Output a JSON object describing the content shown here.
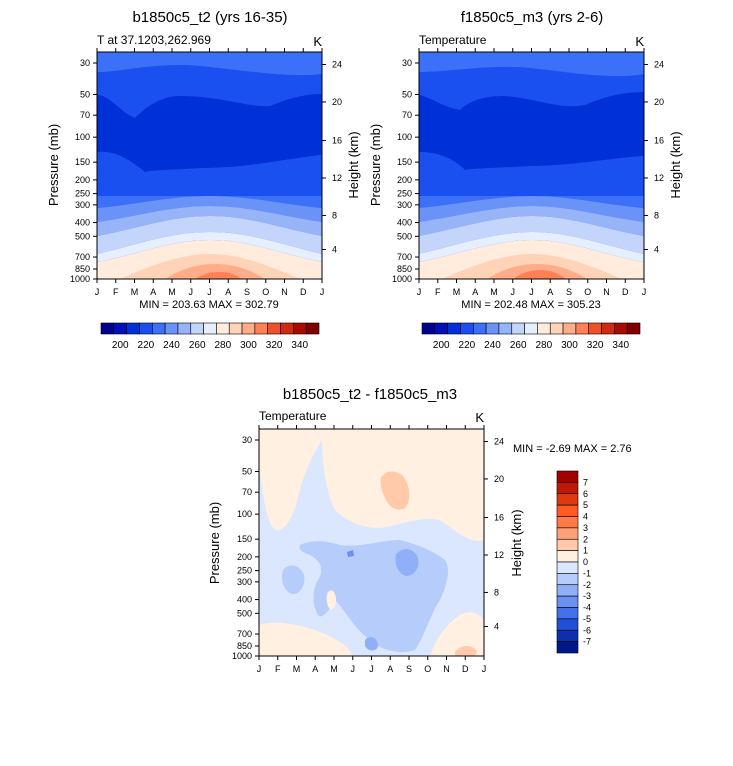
{
  "chart_data": [
    {
      "type": "heatmap",
      "id": "p1",
      "title": "b1850c5_t2 (yrs 16-35)",
      "subtitle_left": "T at 37.1203,262.969",
      "subtitle_right": "K",
      "ylabel": "Pressure (mb)",
      "ylabel_right": "Height (km)",
      "x_ticks": [
        "J",
        "F",
        "M",
        "A",
        "M",
        "J",
        "J",
        "A",
        "S",
        "O",
        "N",
        "D",
        "J"
      ],
      "y_ticks": [
        "30",
        "50",
        "70",
        "100",
        "150",
        "200",
        "250",
        "300",
        "400",
        "500",
        "700",
        "850",
        "1000"
      ],
      "y_ticks_right": [
        "24",
        "20",
        "16",
        "12",
        "8",
        "4"
      ],
      "minmax": "MIN = 203.63   MAX = 302.79",
      "colorbar_labels": [
        "200",
        "220",
        "240",
        "260",
        "280",
        "300",
        "320",
        "340"
      ],
      "bands": [
        {
          "p_top": 30,
          "p_bot": 55,
          "value": 215
        },
        {
          "p_top": 55,
          "p_bot": 155,
          "value": 205
        },
        {
          "p_top": 155,
          "p_bot": 235,
          "value": 215
        },
        {
          "p_top": 235,
          "p_bot": 300,
          "value": 225
        },
        {
          "p_top": 300,
          "p_bot": 370,
          "value": 235
        },
        {
          "p_top": 370,
          "p_bot": 460,
          "value": 245
        },
        {
          "p_top": 460,
          "p_bot": 560,
          "value": 255
        },
        {
          "p_top": 560,
          "p_bot": 700,
          "value": 265
        },
        {
          "p_top": 700,
          "p_bot": 830,
          "value": 275
        },
        {
          "p_top": 830,
          "p_bot": 930,
          "value": 285
        },
        {
          "p_top": 930,
          "p_bot": 1000,
          "value": 295
        }
      ]
    },
    {
      "type": "heatmap",
      "id": "p2",
      "title": "f1850c5_m3 (yrs 2-6)",
      "subtitle_left": "Temperature",
      "subtitle_right": "K",
      "ylabel": "Pressure (mb)",
      "ylabel_right": "Height (km)",
      "x_ticks": [
        "J",
        "F",
        "M",
        "A",
        "M",
        "J",
        "J",
        "A",
        "S",
        "O",
        "N",
        "D",
        "J"
      ],
      "y_ticks": [
        "30",
        "50",
        "70",
        "100",
        "150",
        "200",
        "250",
        "300",
        "400",
        "500",
        "700",
        "850",
        "1000"
      ],
      "y_ticks_right": [
        "24",
        "20",
        "16",
        "12",
        "8",
        "4"
      ],
      "minmax": "MIN = 202.48   MAX = 305.23",
      "colorbar_labels": [
        "200",
        "220",
        "240",
        "260",
        "280",
        "300",
        "320",
        "340"
      ],
      "bands": [
        {
          "p_top": 30,
          "p_bot": 55,
          "value": 215
        },
        {
          "p_top": 55,
          "p_bot": 150,
          "value": 205
        },
        {
          "p_top": 150,
          "p_bot": 235,
          "value": 215
        },
        {
          "p_top": 235,
          "p_bot": 300,
          "value": 225
        },
        {
          "p_top": 300,
          "p_bot": 370,
          "value": 235
        },
        {
          "p_top": 370,
          "p_bot": 460,
          "value": 245
        },
        {
          "p_top": 460,
          "p_bot": 560,
          "value": 255
        },
        {
          "p_top": 560,
          "p_bot": 700,
          "value": 265
        },
        {
          "p_top": 700,
          "p_bot": 830,
          "value": 275
        },
        {
          "p_top": 830,
          "p_bot": 930,
          "value": 285
        },
        {
          "p_top": 930,
          "p_bot": 1000,
          "value": 298
        }
      ]
    },
    {
      "type": "heatmap",
      "id": "p3",
      "title": "b1850c5_t2 - f1850c5_m3",
      "subtitle_left": "Temperature",
      "subtitle_right": "K",
      "ylabel": "Pressure (mb)",
      "ylabel_right": "Height (km)",
      "x_ticks": [
        "J",
        "F",
        "M",
        "A",
        "M",
        "J",
        "J",
        "A",
        "S",
        "O",
        "N",
        "D",
        "J"
      ],
      "y_ticks": [
        "30",
        "50",
        "70",
        "100",
        "150",
        "200",
        "250",
        "300",
        "400",
        "500",
        "700",
        "850",
        "1000"
      ],
      "y_ticks_right": [
        "24",
        "20",
        "16",
        "12",
        "8",
        "4"
      ],
      "minmax": "MIN =  -2.69   MAX =   2.76",
      "colorbar_labels": [
        "7",
        "6",
        "5",
        "4",
        "3",
        "2",
        "1",
        "0",
        "-1",
        "-2",
        "-3",
        "-4",
        "-5",
        "-6",
        "-7"
      ],
      "regions": [
        {
          "p_top": 30,
          "p_bot": 150,
          "value": 0.5
        },
        {
          "p_top": 150,
          "p_bot": 1000,
          "value": -0.5
        },
        {
          "p_top": 165,
          "p_bot": 860,
          "value": -1.5
        },
        {
          "p_top": 190,
          "p_bot": 270,
          "value": -2.5
        },
        {
          "p_top": 60,
          "p_bot": 95,
          "value": 1.5
        },
        {
          "p_top": 720,
          "p_bot": 1000,
          "value": 0.5
        }
      ]
    }
  ],
  "colors": {
    "abs_palette": [
      "#000090",
      "#0010b8",
      "#0030d8",
      "#1a50f0",
      "#3c70f8",
      "#6a93f8",
      "#98b4f8",
      "#c3d5fb",
      "#e6efff",
      "#ffecdd",
      "#ffd3b8",
      "#ffac88",
      "#ff8055",
      "#f05028",
      "#d02a10",
      "#a80c00",
      "#800000"
    ],
    "diff_palette": [
      "#a00000",
      "#c01808",
      "#e03810",
      "#ff5a22",
      "#ff7a44",
      "#ffa077",
      "#ffc9aa",
      "#fff0e2",
      "#dbe7ff",
      "#b6cdfb",
      "#8fb0f8",
      "#6a90f2",
      "#4470ea",
      "#2050d8",
      "#0a30b0",
      "#001888"
    ]
  }
}
